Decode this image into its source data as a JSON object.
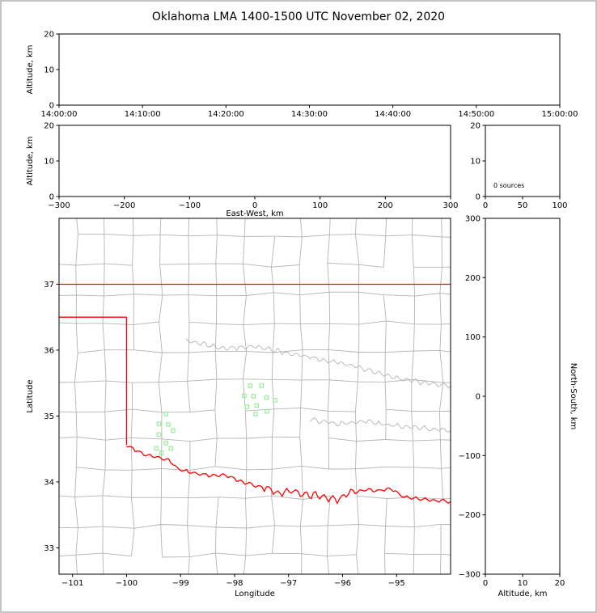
{
  "title": "Oklahoma LMA 1400-1500 UTC November 02, 2020",
  "colors": {
    "background": "#ffffff",
    "frame_border": "#c4c4c4",
    "axis": "#000000",
    "state_border": "#ff0000",
    "county_line": "#b4b4b4",
    "river_line": "#b4b4b4",
    "source_marker": "#90ee90"
  },
  "chart_data": [
    {
      "id": "altitude_vs_time",
      "type": "scatter",
      "xlabel": "",
      "ylabel": "Altitude, km",
      "xtick_labels": [
        "14:00:00",
        "14:10:00",
        "14:20:00",
        "14:30:00",
        "14:40:00",
        "14:50:00",
        "15:00:00"
      ],
      "ylim": [
        0,
        20
      ],
      "yticks": [
        0,
        10,
        20
      ],
      "points": []
    },
    {
      "id": "altitude_vs_east_west",
      "type": "scatter",
      "xlabel": "East-West, km",
      "ylabel": "Altitude, km",
      "xlim": [
        -300,
        300
      ],
      "xticks": [
        -300,
        -200,
        -100,
        0,
        100,
        200,
        300
      ],
      "ylim": [
        0,
        20
      ],
      "yticks": [
        0,
        10,
        20
      ],
      "points": []
    },
    {
      "id": "source_count_panel",
      "type": "bar",
      "xlabel": "",
      "ylabel": "",
      "xlim": [
        0,
        100
      ],
      "xticks": [
        0,
        50,
        100
      ],
      "ylim": [
        0,
        20
      ],
      "yticks": [
        0,
        10,
        20
      ],
      "annotation": "0 sources",
      "values": []
    },
    {
      "id": "plan_view_map",
      "type": "scatter",
      "xlabel": "Longitude",
      "ylabel": "Latitude",
      "xlim": [
        -101.25,
        -94.0
      ],
      "xticks": [
        -101,
        -100,
        -99,
        -98,
        -97,
        -96,
        -95
      ],
      "ylim": [
        32.6,
        38.0
      ],
      "yticks": [
        33,
        34,
        35,
        36,
        37
      ],
      "sources": [
        [
          -99.27,
          35.03
        ],
        [
          -99.4,
          34.88
        ],
        [
          -99.23,
          34.87
        ],
        [
          -99.14,
          34.78
        ],
        [
          -99.4,
          34.72
        ],
        [
          -99.27,
          34.59
        ],
        [
          -99.45,
          34.51
        ],
        [
          -99.18,
          34.51
        ],
        [
          -99.35,
          34.44
        ],
        [
          -97.71,
          35.46
        ],
        [
          -97.5,
          35.46
        ],
        [
          -97.82,
          35.31
        ],
        [
          -97.65,
          35.3
        ],
        [
          -97.41,
          35.28
        ],
        [
          -97.25,
          35.24
        ],
        [
          -97.59,
          35.16
        ],
        [
          -97.77,
          35.14
        ],
        [
          -97.61,
          35.03
        ],
        [
          -97.4,
          35.07
        ]
      ],
      "state_border": {
        "kansas_line": [
          [
            -101.25,
            37.0
          ],
          [
            -94.0,
            37.0
          ]
        ],
        "panhandle_south": [
          [
            -101.25,
            36.5
          ],
          [
            -100.0,
            36.5
          ]
        ],
        "west_line": [
          [
            -100.0,
            36.5
          ],
          [
            -100.0,
            34.56
          ]
        ],
        "red_river": [
          [
            -100.0,
            34.56
          ],
          [
            -99.8,
            34.47
          ],
          [
            -99.6,
            34.4
          ],
          [
            -99.4,
            34.37
          ],
          [
            -99.22,
            34.33
          ],
          [
            -99.05,
            34.2
          ],
          [
            -98.85,
            34.15
          ],
          [
            -98.6,
            34.12
          ],
          [
            -98.4,
            34.09
          ],
          [
            -98.17,
            34.11
          ],
          [
            -98.0,
            34.05
          ],
          [
            -97.85,
            34.0
          ],
          [
            -97.65,
            33.95
          ],
          [
            -97.45,
            33.92
          ],
          [
            -97.2,
            33.82
          ],
          [
            -96.95,
            33.86
          ],
          [
            -96.7,
            33.82
          ],
          [
            -96.5,
            33.79
          ],
          [
            -96.3,
            33.76
          ],
          [
            -96.1,
            33.72
          ],
          [
            -95.85,
            33.84
          ],
          [
            -95.6,
            33.88
          ],
          [
            -95.35,
            33.87
          ],
          [
            -95.1,
            33.9
          ],
          [
            -94.85,
            33.77
          ],
          [
            -94.6,
            33.75
          ],
          [
            -94.3,
            33.72
          ],
          [
            -94.0,
            33.7
          ]
        ]
      },
      "rivers": [
        [
          [
            -98.9,
            36.15
          ],
          [
            -98.2,
            36.02
          ],
          [
            -97.6,
            36.06
          ],
          [
            -97.0,
            35.95
          ],
          [
            -96.4,
            35.86
          ],
          [
            -95.8,
            35.76
          ],
          [
            -95.2,
            35.62
          ],
          [
            -94.6,
            35.52
          ],
          [
            -94.0,
            35.46
          ]
        ],
        [
          [
            -96.6,
            34.95
          ],
          [
            -96.1,
            34.88
          ],
          [
            -95.6,
            34.92
          ],
          [
            -95.1,
            34.86
          ],
          [
            -94.6,
            34.82
          ],
          [
            -94.0,
            34.78
          ]
        ]
      ],
      "county_grid": {
        "lon_start": -101.45,
        "lat_start": 32.45,
        "lon_step": 0.52,
        "lat_step": 0.44,
        "jitter": 0.07,
        "keep_prob": 0.93,
        "seed": 20201102
      }
    },
    {
      "id": "altitude_vs_north_south",
      "type": "scatter",
      "xlabel": "Altitude, km",
      "ylabel": "North-South, km",
      "xlim": [
        0,
        20
      ],
      "xticks": [
        0,
        10,
        20
      ],
      "ylim": [
        -300,
        300
      ],
      "yticks": [
        -300,
        -200,
        -100,
        0,
        100,
        200,
        300
      ],
      "points": []
    }
  ]
}
